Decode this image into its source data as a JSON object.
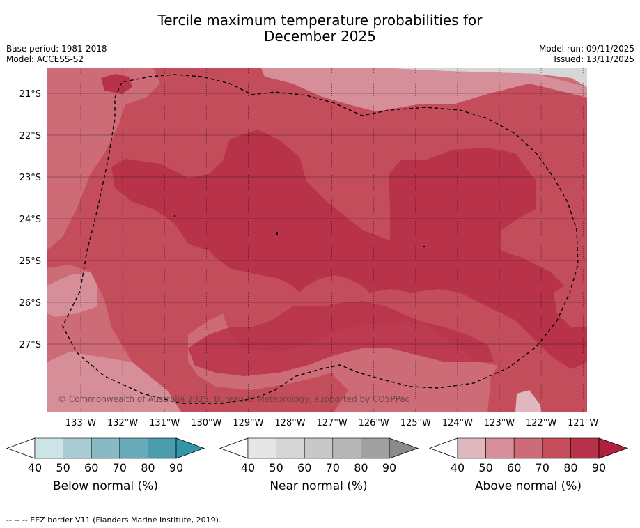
{
  "title_line1": "Tercile maximum temperature probabilities for",
  "title_line2": "December 2025",
  "meta_left": {
    "base_period": "Base period: 1981-2018",
    "model": "Model: ACCESS-S2"
  },
  "meta_right": {
    "model_run": "Model run: 09/11/2025",
    "issued": "Issued: 13/11/2025"
  },
  "map": {
    "copyright": "© Commonwealth of Australia 2025, Bureau of Meteorology, supported by COSPPac",
    "lon_labels": [
      "133°W",
      "132°W",
      "131°W",
      "130°W",
      "129°W",
      "128°W",
      "127°W",
      "126°W",
      "125°W",
      "124°W",
      "123°W",
      "122°W",
      "121°W"
    ],
    "lat_labels": [
      "21°S",
      "22°S",
      "23°S",
      "24°S",
      "25°S",
      "26°S",
      "27°S"
    ],
    "colors": {
      "above_40": "#e0b7bd",
      "above_50": "#d68f99",
      "above_60": "#cd6b77",
      "above_70": "#c44d5c",
      "above_80": "#b83349",
      "near_40": "#d6d6d6"
    }
  },
  "colorbars": [
    {
      "label": "Below normal (%)",
      "ticks": [
        "40",
        "50",
        "60",
        "70",
        "80",
        "90"
      ],
      "colors": [
        "#cce3e8",
        "#a9ccd2",
        "#88b9c4",
        "#69abb9",
        "#4a9dae",
        "#3295a8"
      ]
    },
    {
      "label": "Near normal (%)",
      "ticks": [
        "40",
        "50",
        "60",
        "70",
        "80",
        "90"
      ],
      "colors": [
        "#e6e6e6",
        "#d6d6d6",
        "#c8c8c8",
        "#b6b6b6",
        "#a0a0a0",
        "#8a8a8a"
      ]
    },
    {
      "label": "Above normal (%)",
      "ticks": [
        "40",
        "50",
        "60",
        "70",
        "80",
        "90"
      ],
      "colors": [
        "#e0b7bd",
        "#d68f99",
        "#cd6b77",
        "#c44d5c",
        "#b83349",
        "#b0203f"
      ]
    }
  ],
  "footer": "--  --  -- EEZ border V11 (Flanders Marine Institute, 2019)."
}
